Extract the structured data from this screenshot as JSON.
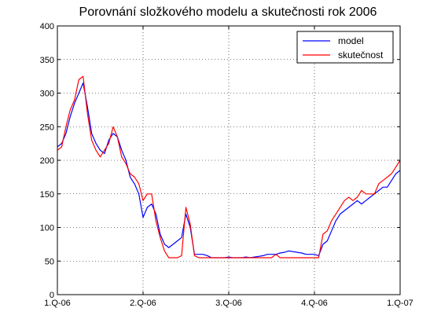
{
  "chart_data": {
    "type": "line",
    "title": "Porovnání složkového modelu a skutečnosti rok 2006",
    "xlabel": "",
    "ylabel": "",
    "xlim": [
      0,
      4
    ],
    "ylim": [
      0,
      400
    ],
    "x_ticks": [
      {
        "value": 0,
        "label": "1.Q-06"
      },
      {
        "value": 1,
        "label": "2.Q-06"
      },
      {
        "value": 2,
        "label": "3.Q-06"
      },
      {
        "value": 3,
        "label": "4.Q-06"
      },
      {
        "value": 4,
        "label": "1.Q-07"
      }
    ],
    "y_ticks": [
      0,
      50,
      100,
      150,
      200,
      250,
      300,
      350,
      400
    ],
    "grid": true,
    "legend_position": "top-right",
    "x": [
      0.0,
      0.05,
      0.1,
      0.15,
      0.2,
      0.25,
      0.3,
      0.35,
      0.4,
      0.45,
      0.5,
      0.55,
      0.6,
      0.65,
      0.7,
      0.75,
      0.8,
      0.85,
      0.9,
      0.95,
      1.0,
      1.05,
      1.1,
      1.15,
      1.2,
      1.25,
      1.3,
      1.35,
      1.4,
      1.45,
      1.5,
      1.55,
      1.6,
      1.65,
      1.7,
      1.75,
      1.8,
      1.85,
      1.9,
      1.95,
      2.0,
      2.05,
      2.1,
      2.15,
      2.2,
      2.25,
      2.3,
      2.35,
      2.4,
      2.45,
      2.5,
      2.55,
      2.6,
      2.65,
      2.7,
      2.75,
      2.8,
      2.85,
      2.9,
      2.95,
      3.0,
      3.05,
      3.1,
      3.15,
      3.2,
      3.25,
      3.3,
      3.35,
      3.4,
      3.45,
      3.5,
      3.55,
      3.6,
      3.65,
      3.7,
      3.75,
      3.8,
      3.85,
      3.9,
      3.95,
      4.0
    ],
    "series": [
      {
        "name": "model",
        "color": "#0000ff",
        "values": [
          220,
          225,
          240,
          265,
          285,
          300,
          315,
          280,
          240,
          225,
          215,
          210,
          230,
          240,
          235,
          215,
          200,
          175,
          165,
          150,
          115,
          130,
          135,
          120,
          90,
          75,
          70,
          75,
          80,
          85,
          120,
          100,
          60,
          60,
          60,
          58,
          55,
          55,
          55,
          55,
          56,
          55,
          55,
          55,
          56,
          55,
          56,
          57,
          58,
          60,
          60,
          60,
          62,
          63,
          65,
          64,
          63,
          62,
          60,
          60,
          60,
          58,
          75,
          80,
          95,
          110,
          120,
          125,
          130,
          135,
          140,
          135,
          140,
          145,
          150,
          155,
          160,
          160,
          170,
          180,
          185
        ]
      },
      {
        "name": "skutečnost",
        "color": "#ff0000",
        "values": [
          215,
          220,
          250,
          275,
          290,
          320,
          325,
          270,
          230,
          215,
          205,
          215,
          225,
          250,
          235,
          205,
          195,
          180,
          175,
          165,
          140,
          150,
          150,
          110,
          85,
          65,
          55,
          55,
          55,
          58,
          130,
          105,
          58,
          55,
          55,
          55,
          55,
          55,
          55,
          55,
          55,
          55,
          55,
          55,
          55,
          55,
          55,
          55,
          55,
          55,
          55,
          60,
          55,
          55,
          55,
          55,
          55,
          55,
          55,
          55,
          55,
          55,
          90,
          95,
          110,
          120,
          130,
          140,
          145,
          140,
          145,
          155,
          150,
          150,
          150,
          165,
          170,
          175,
          180,
          190,
          200
        ]
      }
    ]
  }
}
